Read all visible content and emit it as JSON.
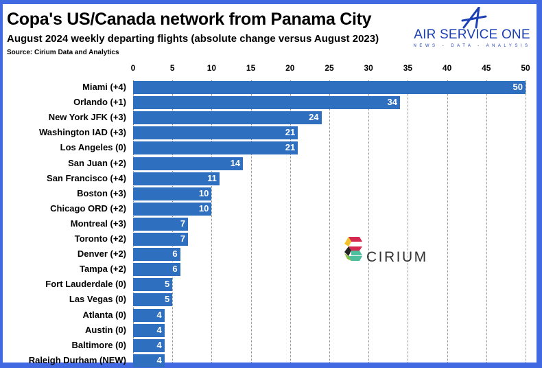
{
  "header": {
    "title": "Copa's US/Canada network from Panama City",
    "subtitle": "August 2024 weekly departing flights (absolute change versus August 2023)",
    "source": "Source: Cirium Data and Analytics"
  },
  "logos": {
    "publisher": "AIR SERVICE ONE",
    "publisher_tagline": "NEWS - DATA - ANALYSIS",
    "data_provider": "CIRIUM"
  },
  "colors": {
    "bar": "#2f6fbf",
    "frame": "#4169e1",
    "publisher_logo": "#1c3fb5"
  },
  "chart_data": {
    "type": "bar",
    "orientation": "horizontal",
    "title": "Copa's US/Canada network from Panama City",
    "subtitle": "August 2024 weekly departing flights (absolute change versus August 2023)",
    "xlabel": "",
    "ylabel": "",
    "xlim": [
      0,
      50
    ],
    "ticks": [
      0,
      5,
      10,
      15,
      20,
      25,
      30,
      35,
      40,
      45,
      50
    ],
    "tick_labels": [
      "0",
      "5",
      "10",
      "15",
      "20",
      "25",
      "30",
      "35",
      "40",
      "45",
      "50"
    ],
    "axis_position": "top",
    "grid": true,
    "legend": null,
    "categories": [
      "Miami (+4)",
      "Orlando (+1)",
      "New York JFK (+3)",
      "Washington IAD (+3)",
      "Los Angeles (0)",
      "San Juan (+2)",
      "San Francisco (+4)",
      "Boston (+3)",
      "Chicago ORD (+2)",
      "Montreal (+3)",
      "Toronto (+2)",
      "Denver (+2)",
      "Tampa (+2)",
      "Fort Lauderdale (0)",
      "Las Vegas (0)",
      "Atlanta (0)",
      "Austin (0)",
      "Baltimore (0)",
      "Raleigh Durham (NEW)"
    ],
    "values": [
      50,
      34,
      24,
      21,
      21,
      14,
      11,
      10,
      10,
      7,
      7,
      6,
      6,
      5,
      5,
      4,
      4,
      4,
      4
    ],
    "value_labels": [
      "50",
      "34",
      "24",
      "21",
      "21",
      "14",
      "11",
      "10",
      "10",
      "7",
      "7",
      "6",
      "6",
      "5",
      "5",
      "4",
      "4",
      "4",
      "4"
    ],
    "change_vs_prior_year": [
      "+4",
      "+1",
      "+3",
      "+3",
      "0",
      "+2",
      "+4",
      "+3",
      "+2",
      "+3",
      "+2",
      "+2",
      "+2",
      "0",
      "0",
      "0",
      "0",
      "0",
      "NEW"
    ]
  }
}
